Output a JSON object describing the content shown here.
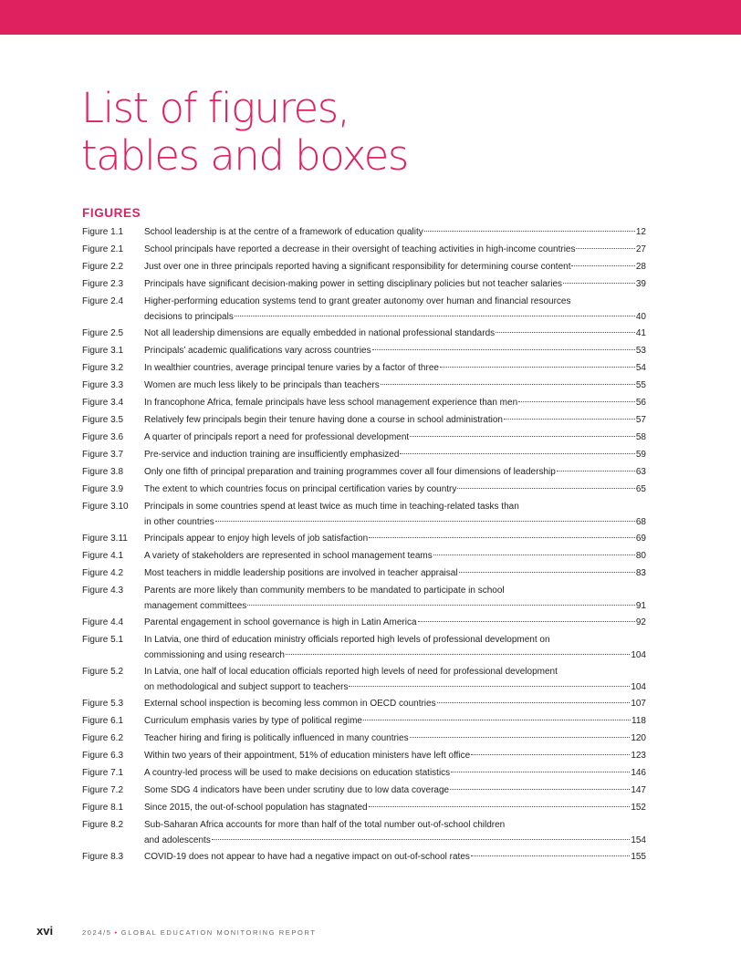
{
  "header": {
    "band_color": "#e0215f"
  },
  "page_title": {
    "line1": "List of figures,",
    "line2": "tables and boxes"
  },
  "section_heading": "FIGURES",
  "figures": [
    {
      "number": "Figure 1.1",
      "lines": [
        "School leadership is at the centre of a framework of education quality"
      ],
      "page": "12"
    },
    {
      "number": "Figure 2.1",
      "lines": [
        "School principals have reported a decrease in their oversight of teaching activities in high-income countries"
      ],
      "page": "27"
    },
    {
      "number": "Figure 2.2",
      "lines": [
        "Just over one in three principals reported having a significant responsibility for determining course content"
      ],
      "page": "28"
    },
    {
      "number": "Figure 2.3",
      "lines": [
        "Principals have significant decision-making power in setting disciplinary policies but not teacher salaries"
      ],
      "page": "39"
    },
    {
      "number": "Figure 2.4",
      "lines": [
        "Higher-performing education systems tend to grant greater autonomy over human and financial resources",
        "decisions to principals"
      ],
      "page": "40"
    },
    {
      "number": "Figure 2.5",
      "lines": [
        "Not all leadership dimensions are equally embedded in national professional standards"
      ],
      "page": "41"
    },
    {
      "number": "Figure 3.1",
      "lines": [
        "Principals’ academic qualifications vary across countries"
      ],
      "page": "53"
    },
    {
      "number": "Figure 3.2",
      "lines": [
        "In wealthier countries, average principal tenure varies by a factor of three"
      ],
      "page": "54"
    },
    {
      "number": "Figure 3.3",
      "lines": [
        "Women are much less likely to be principals than teachers"
      ],
      "page": "55"
    },
    {
      "number": "Figure 3.4",
      "lines": [
        "In francophone Africa, female principals have less school management experience than men"
      ],
      "page": "56"
    },
    {
      "number": "Figure 3.5",
      "lines": [
        "Relatively few principals begin their tenure having done a course in school administration"
      ],
      "page": "57"
    },
    {
      "number": "Figure 3.6",
      "lines": [
        "A quarter of principals report a need for professional development"
      ],
      "page": "58"
    },
    {
      "number": "Figure 3.7",
      "lines": [
        "Pre-service and induction training are insufficiently emphasized"
      ],
      "page": "59"
    },
    {
      "number": "Figure 3.8",
      "lines": [
        "Only one fifth of principal preparation and training programmes cover all four dimensions of leadership"
      ],
      "page": "63"
    },
    {
      "number": "Figure 3.9",
      "lines": [
        "The extent to which countries focus on principal certification varies by country"
      ],
      "page": "65"
    },
    {
      "number": "Figure 3.10",
      "lines": [
        "Principals in some countries spend at least twice as much time in teaching-related tasks than",
        "in other countries"
      ],
      "page": "68"
    },
    {
      "number": "Figure 3.11",
      "lines": [
        "Principals appear to enjoy high levels of job satisfaction"
      ],
      "page": "69"
    },
    {
      "number": "Figure 4.1",
      "lines": [
        "A variety of stakeholders are represented in school management teams"
      ],
      "page": "80"
    },
    {
      "number": "Figure 4.2",
      "lines": [
        "Most teachers in middle leadership positions are involved in teacher appraisal"
      ],
      "page": "83"
    },
    {
      "number": "Figure 4.3",
      "lines": [
        "Parents are more likely than community members to be mandated to participate in school",
        "management committees"
      ],
      "page": "91"
    },
    {
      "number": "Figure 4.4",
      "lines": [
        "Parental engagement in school governance is high in Latin America"
      ],
      "page": "92"
    },
    {
      "number": "Figure 5.1",
      "lines": [
        "In Latvia, one third of education ministry officials reported high levels of professional development on",
        "commissioning and using research"
      ],
      "page": "104"
    },
    {
      "number": "Figure 5.2",
      "lines": [
        "In Latvia, one half of local education officials reported high levels of need for professional development",
        "on methodological and subject support to teachers"
      ],
      "page": "104"
    },
    {
      "number": "Figure 5.3",
      "lines": [
        "External school inspection is becoming less common in OECD countries"
      ],
      "page": "107"
    },
    {
      "number": "Figure 6.1",
      "lines": [
        "Curriculum emphasis varies by type of political regime"
      ],
      "page": "118"
    },
    {
      "number": "Figure 6.2",
      "lines": [
        "Teacher hiring and firing is politically influenced in many countries"
      ],
      "page": "120"
    },
    {
      "number": "Figure 6.3",
      "lines": [
        "Within two years of their appointment, 51% of education ministers have left office"
      ],
      "page": "123"
    },
    {
      "number": "Figure 7.1",
      "lines": [
        "A country-led process will be used to make decisions on education statistics"
      ],
      "page": "146"
    },
    {
      "number": "Figure 7.2",
      "lines": [
        "Some SDG 4 indicators have been under scrutiny due to low data coverage"
      ],
      "page": "147"
    },
    {
      "number": "Figure 8.1",
      "lines": [
        "Since 2015, the out-of-school population has stagnated"
      ],
      "page": "152"
    },
    {
      "number": "Figure 8.2",
      "lines": [
        "Sub-Saharan Africa accounts for more than half of the total number out-of-school children",
        "and adolescents"
      ],
      "page": "154"
    },
    {
      "number": "Figure 8.3",
      "lines": [
        "COVID-19 does not appear to have had a negative impact on out-of-school rates"
      ],
      "page": "155"
    }
  ],
  "footer": {
    "folio": "xvi",
    "edition": "2024/5",
    "bullet": "•",
    "report_name": "GLOBAL EDUCATION MONITORING REPORT"
  }
}
